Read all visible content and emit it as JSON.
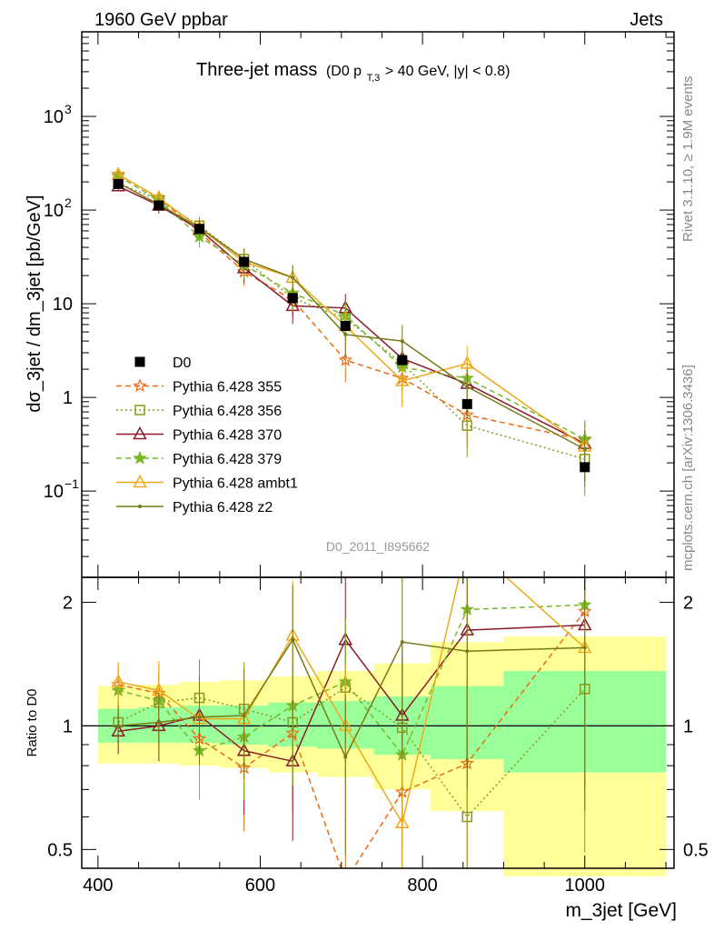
{
  "header": {
    "left": "1960 GeV ppbar",
    "right": "Jets",
    "title_main": "Three-jet mass",
    "title_cut_prefix": "(D0 p",
    "title_cut_sub": "T,3",
    "title_cut_suffix": " > 40 GeV, |y| < 0.8)",
    "watermark": "D0_2011_I895662",
    "side_rivet": "Rivet 3.1.10, ≥ 1.9M events",
    "side_mcplots": "mcplots.cern.ch [arXiv:1306.3436]"
  },
  "chart_data": [
    {
      "type": "scatter",
      "panel": "main",
      "ylabel": "dσ_3jet / dm_3jet [pb/GeV]",
      "xlim": [
        380,
        1110
      ],
      "ylim": [
        0.012,
        8000
      ],
      "yscale": "log",
      "x_ticks": [
        400,
        600,
        800,
        1000
      ],
      "y_ticks": [
        {
          "v": 0.1,
          "label": "10",
          "exp": "−1"
        },
        {
          "v": 1,
          "label": "1",
          "exp": ""
        },
        {
          "v": 10,
          "label": "10",
          "exp": ""
        },
        {
          "v": 100,
          "label": "10",
          "exp": "2"
        },
        {
          "v": 1000,
          "label": "10",
          "exp": "3"
        }
      ],
      "legend_position": "left-middle",
      "x": [
        425,
        475,
        525,
        580,
        640,
        705,
        775,
        855,
        1000
      ],
      "data": {
        "name": "D0",
        "color": "#000000",
        "values": [
          190,
          112,
          63,
          28,
          11.5,
          5.8,
          2.5,
          0.85,
          0.18
        ]
      },
      "series": [
        {
          "name": "Pythia 6.428 355",
          "color": "#ee6a10",
          "dash": "6,4",
          "marker": "star-open",
          "values": [
            240,
            135,
            58,
            22,
            11,
            2.5,
            1.6,
            0.65,
            0.35
          ]
        },
        {
          "name": "Pythia 6.428 356",
          "color": "#8a9a18",
          "dash": "2,3",
          "marker": "square-open",
          "values": [
            195,
            128,
            68,
            30,
            11.5,
            7,
            2.3,
            0.5,
            0.22
          ]
        },
        {
          "name": "Pythia 6.428 370",
          "color": "#8b1a2a",
          "dash": "",
          "marker": "triangle-open",
          "values": [
            180,
            112,
            62,
            24,
            9.5,
            9,
            2.6,
            1.4,
            0.32
          ]
        },
        {
          "name": "Pythia 6.428 379",
          "color": "#7ab828",
          "dash": "6,4",
          "marker": "star-filled",
          "values": [
            230,
            128,
            52,
            26,
            13,
            7.5,
            2.1,
            1.6,
            0.36
          ]
        },
        {
          "name": "Pythia 6.428 ambt1",
          "color": "#f0a818",
          "dash": "",
          "marker": "triangle-open",
          "values": [
            240,
            135,
            65,
            28,
            19,
            5.8,
            1.5,
            2.3,
            0.3
          ]
        },
        {
          "name": "Pythia 6.428 z2",
          "color": "#787a18",
          "dash": "",
          "marker": "dot",
          "values": [
            195,
            115,
            65,
            30,
            19,
            4.7,
            4,
            1.3,
            0.28
          ]
        }
      ]
    },
    {
      "type": "line",
      "panel": "ratio",
      "xlabel": "m_3jet [GeV]",
      "ylabel": "Ratio to D0",
      "xlim": [
        380,
        1110
      ],
      "ylim": [
        0.45,
        2.3
      ],
      "yscale": "log",
      "y_ticks": [
        0.5,
        1,
        2
      ],
      "x_ticks": [
        400,
        600,
        800,
        1000
      ],
      "band_edges": [
        400,
        450,
        500,
        550,
        610,
        670,
        740,
        810,
        900,
        1100
      ],
      "inner_band": [
        [
          0.91,
          1.1
        ],
        [
          0.91,
          1.11
        ],
        [
          0.91,
          1.12
        ],
        [
          0.9,
          1.12
        ],
        [
          0.89,
          1.14
        ],
        [
          0.88,
          1.15
        ],
        [
          0.85,
          1.18
        ],
        [
          0.83,
          1.25
        ],
        [
          0.77,
          1.36
        ]
      ],
      "outer_band": [
        [
          0.81,
          1.25
        ],
        [
          0.81,
          1.26
        ],
        [
          0.8,
          1.28
        ],
        [
          0.79,
          1.29
        ],
        [
          0.77,
          1.32
        ],
        [
          0.75,
          1.36
        ],
        [
          0.7,
          1.42
        ],
        [
          0.62,
          1.6
        ],
        [
          0.43,
          1.65
        ]
      ],
      "series_ratio": [
        [
          1.26,
          1.2,
          0.93,
          0.79,
          0.96,
          0.42,
          0.69,
          0.81,
          1.9
        ],
        [
          1.02,
          1.14,
          1.17,
          1.1,
          1.02,
          1.24,
          0.99,
          0.6,
          1.23
        ],
        [
          0.97,
          1.0,
          1.06,
          0.87,
          0.82,
          1.62,
          1.06,
          1.71,
          1.76
        ],
        [
          1.22,
          1.15,
          0.87,
          0.94,
          1.12,
          1.28,
          0.85,
          1.92,
          1.97
        ],
        [
          1.28,
          1.22,
          1.04,
          1.04,
          1.66,
          1.0,
          0.58,
          2.8,
          1.55
        ],
        [
          1.0,
          1.02,
          1.05,
          1.06,
          1.62,
          0.84,
          1.6,
          1.52,
          1.55
        ]
      ]
    }
  ]
}
